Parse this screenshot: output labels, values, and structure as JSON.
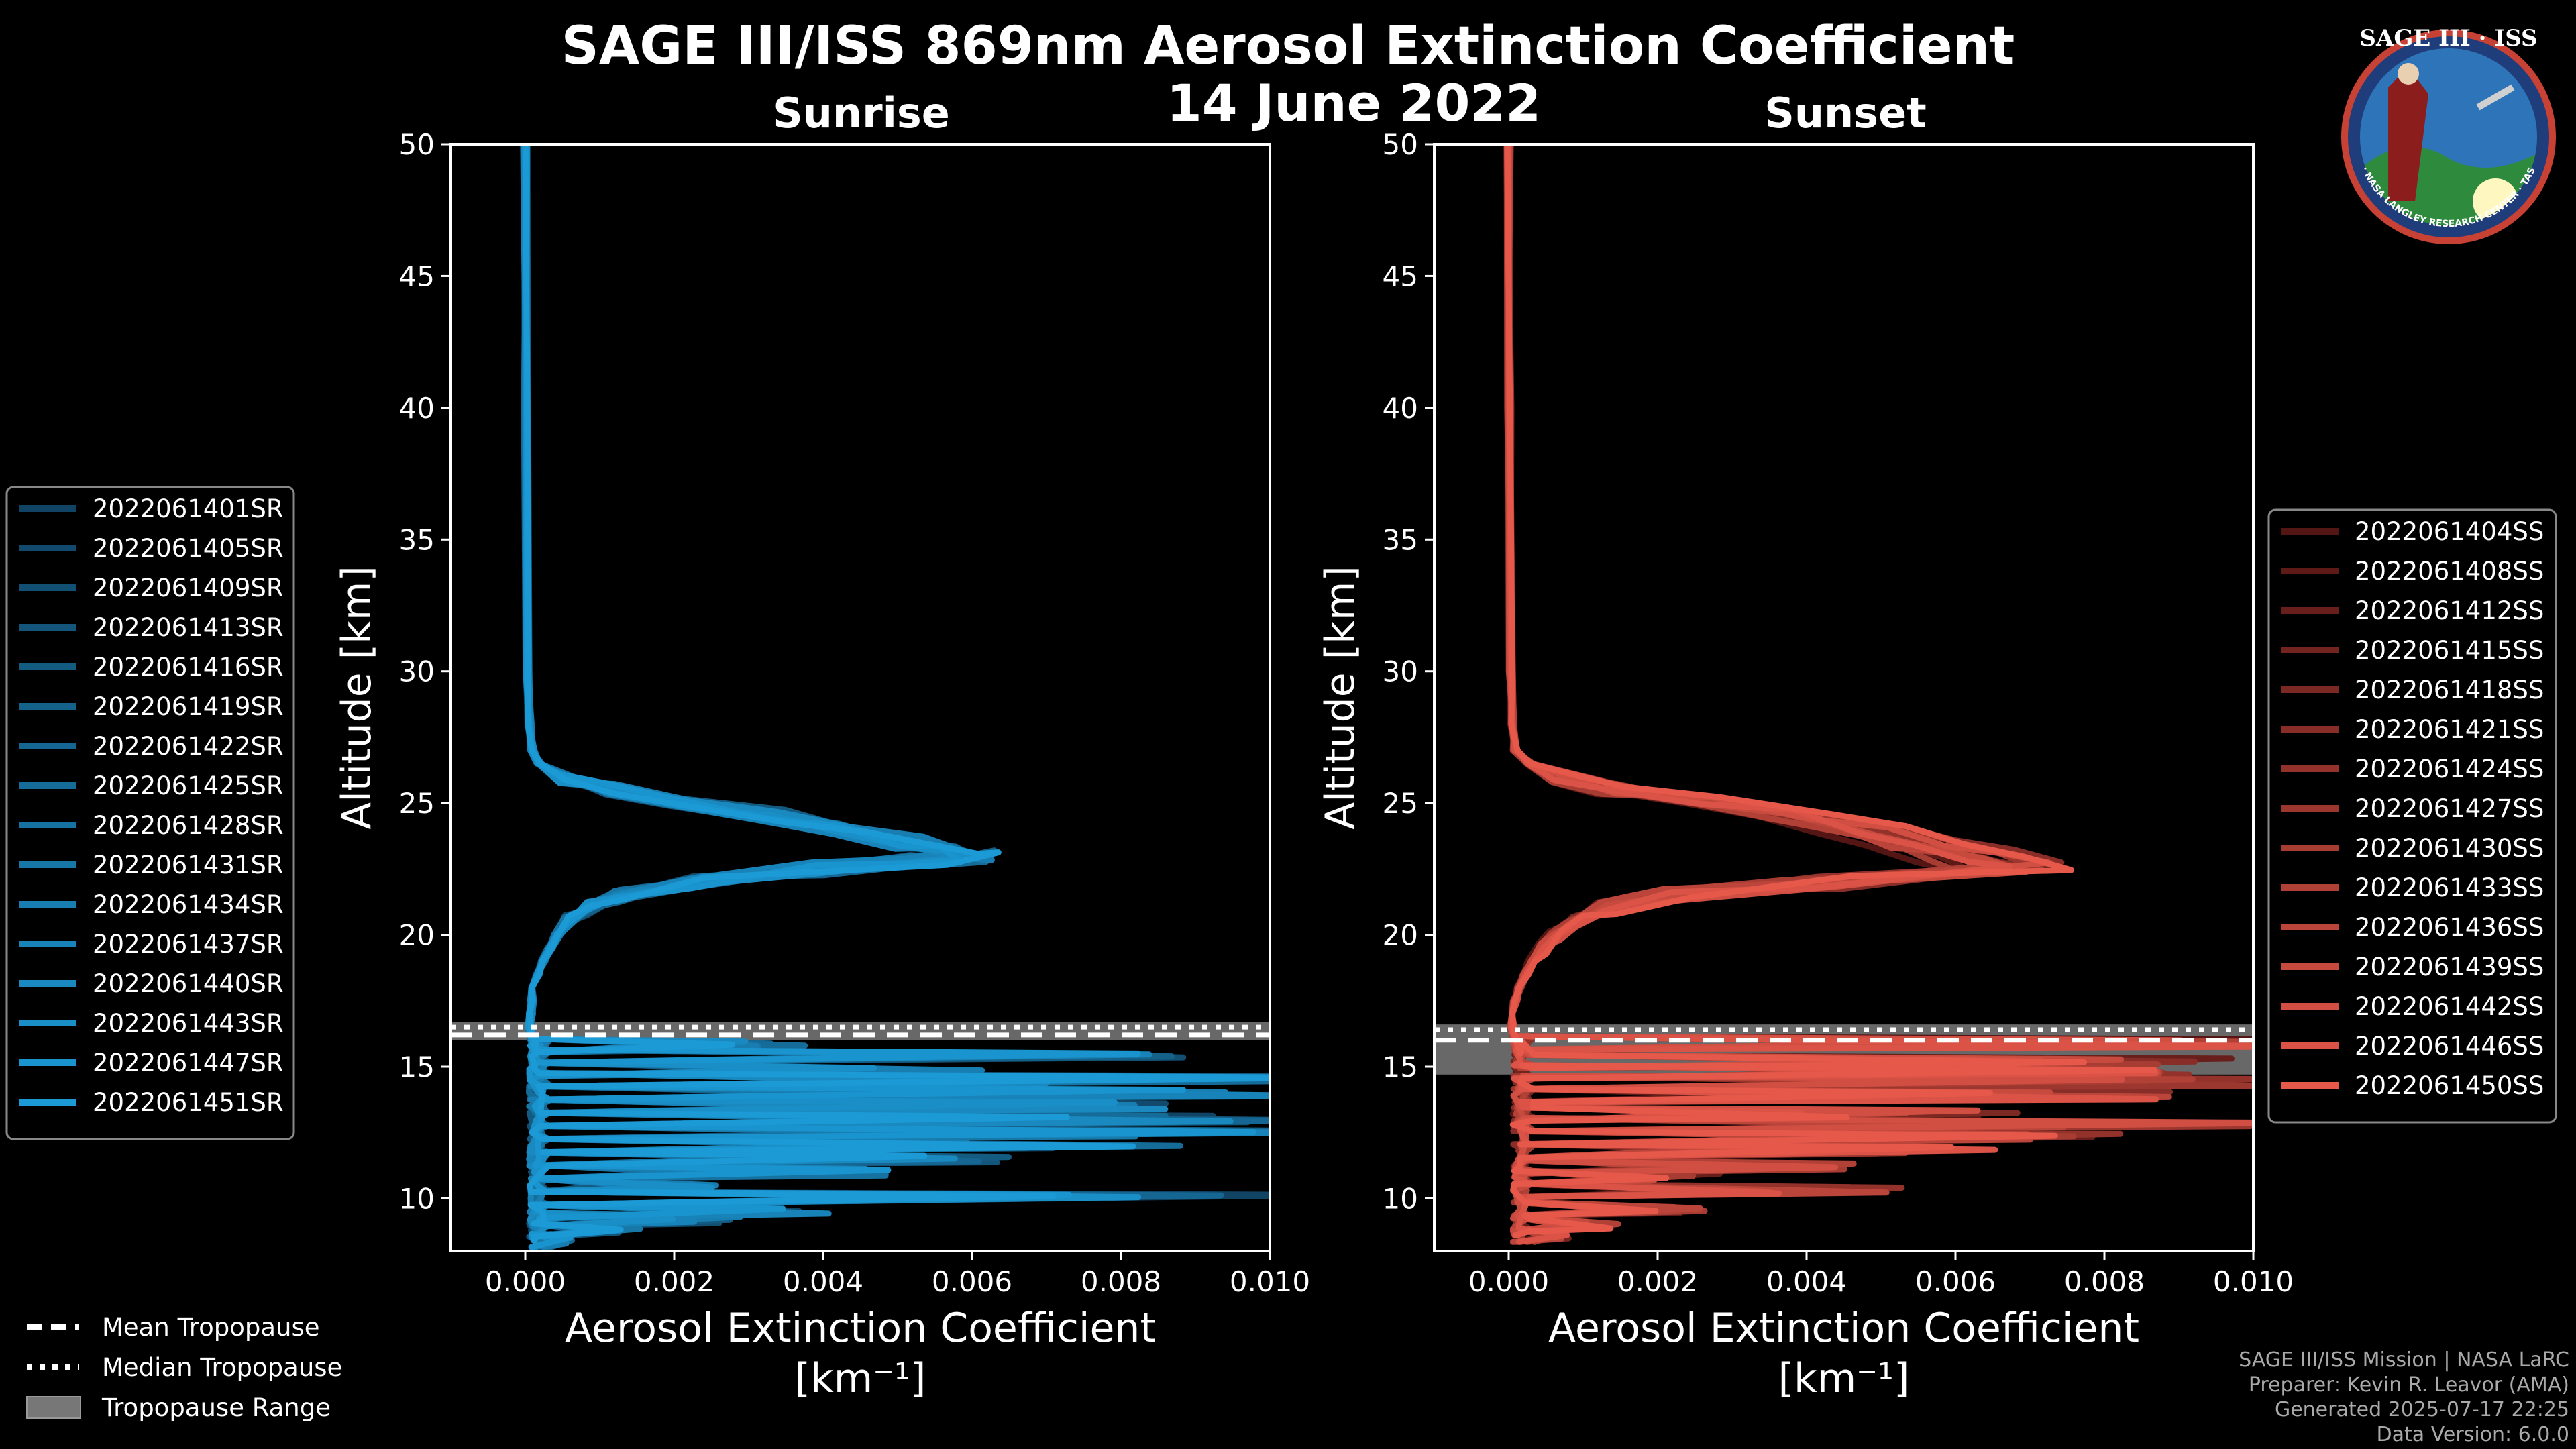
{
  "title_line1": "SAGE III/ISS 869nm Aerosol Extinction Coefficient",
  "title_line2": "14 June 2022",
  "logo": {
    "top_text": "SAGE III · ISS",
    "ring_text": "BALL · NASA LANGLEY RESEARCH CENTER · TAS · ESA"
  },
  "credits": [
    "SAGE III/ISS Mission | NASA LaRC",
    "Preparer: Kevin R. Leavor (AMA)",
    "Generated 2025-07-17 22:25",
    "Data Version: 6.0.0"
  ],
  "tropopause_legend": [
    {
      "label": "Mean Tropopause",
      "style": "dashed"
    },
    {
      "label": "Median Tropopause",
      "style": "dotted"
    },
    {
      "label": "Tropopause Range",
      "style": "band"
    }
  ],
  "chart_data": [
    {
      "type": "line",
      "panel": "sunrise",
      "title": "Sunrise",
      "xlabel": "Aerosol Extinction Coefficient",
      "xlabel_unit": "[km$^{-1}$]",
      "xlabel_unit_display": "[km⁻¹]",
      "ylabel": "Altitude [km]",
      "xlim": [
        -0.001,
        0.01
      ],
      "ylim": [
        8,
        50
      ],
      "xticks": [
        "0.000",
        "0.002",
        "0.004",
        "0.006",
        "0.008",
        "0.010"
      ],
      "xtick_values": [
        0,
        0.002,
        0.004,
        0.006,
        0.008,
        0.01
      ],
      "yticks": [
        10,
        15,
        20,
        25,
        30,
        35,
        40,
        45,
        50
      ],
      "color_light": "#1b9ad6",
      "color_dark": "#0f3550",
      "tropopause": {
        "mean": 16.2,
        "median": 16.5,
        "range": [
          16.0,
          16.7
        ]
      },
      "series_names": [
        "2022061401SR",
        "2022061405SR",
        "2022061409SR",
        "2022061413SR",
        "2022061416SR",
        "2022061419SR",
        "2022061422SR",
        "2022061425SR",
        "2022061428SR",
        "2022061431SR",
        "2022061434SR",
        "2022061437SR",
        "2022061440SR",
        "2022061443SR",
        "2022061447SR",
        "2022061451SR"
      ],
      "profile_template": {
        "altitude": [
          50,
          40,
          30,
          28,
          27,
          26.5,
          26,
          25.5,
          25,
          24.5,
          24,
          23.5,
          23.2,
          23,
          22.8,
          22.5,
          22,
          21.5,
          21,
          20.5,
          20,
          19.5,
          19,
          18.5,
          18,
          17.5,
          17,
          16.5,
          16,
          15.5
        ],
        "extinction": [
          0.0,
          1e-05,
          3e-05,
          6e-05,
          0.0001,
          0.0002,
          0.0005,
          0.0012,
          0.0022,
          0.0035,
          0.0045,
          0.0054,
          0.006,
          0.0063,
          0.0056,
          0.0042,
          0.0024,
          0.0013,
          0.00085,
          0.0006,
          0.00045,
          0.00035,
          0.00025,
          0.00018,
          0.00012,
          0.0001,
          8e-05,
          6e-05,
          0.0001,
          0.00015
        ]
      },
      "peak_scale": [
        0.92,
        0.95,
        0.97,
        0.9,
        1.0,
        0.93,
        0.96,
        0.98,
        0.91,
        0.94,
        0.99,
        0.92,
        0.97,
        0.95,
        0.93,
        1.01
      ],
      "lower_spikes": [
        {
          "altitude": 15.8,
          "extinction": 0.0035
        },
        {
          "altitude": 15.4,
          "extinction": 0.0085
        },
        {
          "altitude": 14.9,
          "extinction": 0.006
        },
        {
          "altitude": 14.5,
          "extinction": 0.01
        },
        {
          "altitude": 14.0,
          "extinction": 0.01
        },
        {
          "altitude": 13.5,
          "extinction": 0.008
        },
        {
          "altitude": 13.0,
          "extinction": 0.01
        },
        {
          "altitude": 12.5,
          "extinction": 0.01
        },
        {
          "altitude": 12.0,
          "extinction": 0.008
        },
        {
          "altitude": 11.5,
          "extinction": 0.006
        },
        {
          "altitude": 11.0,
          "extinction": 0.0045
        },
        {
          "altitude": 10.5,
          "extinction": 0.0025
        },
        {
          "altitude": 10.0,
          "extinction": 0.01
        },
        {
          "altitude": 9.5,
          "extinction": 0.004
        },
        {
          "altitude": 9.2,
          "extinction": 0.003
        },
        {
          "altitude": 8.8,
          "extinction": 0.0015
        },
        {
          "altitude": 8.4,
          "extinction": 0.0006
        }
      ]
    },
    {
      "type": "line",
      "panel": "sunset",
      "title": "Sunset",
      "xlabel": "Aerosol Extinction Coefficient",
      "xlabel_unit": "[km$^{-1}$]",
      "xlabel_unit_display": "[km⁻¹]",
      "ylabel": "Altitude [km]",
      "xlim": [
        -0.001,
        0.01
      ],
      "ylim": [
        8,
        50
      ],
      "xticks": [
        "0.000",
        "0.002",
        "0.004",
        "0.006",
        "0.008",
        "0.010"
      ],
      "xtick_values": [
        0,
        0.002,
        0.004,
        0.006,
        0.008,
        0.01
      ],
      "yticks": [
        10,
        15,
        20,
        25,
        30,
        35,
        40,
        45,
        50
      ],
      "color_light": "#e5584a",
      "color_dark": "#3a0a0a",
      "tropopause": {
        "mean": 16.0,
        "median": 16.4,
        "range": [
          14.7,
          16.6
        ]
      },
      "series_names": [
        "2022061404SS",
        "2022061408SS",
        "2022061412SS",
        "2022061415SS",
        "2022061418SS",
        "2022061421SS",
        "2022061424SS",
        "2022061427SS",
        "2022061430SS",
        "2022061433SS",
        "2022061436SS",
        "2022061439SS",
        "2022061442SS",
        "2022061446SS",
        "2022061450SS"
      ],
      "profile_template": {
        "altitude": [
          50,
          40,
          30,
          28,
          27,
          26.5,
          26,
          25.5,
          25,
          24.5,
          24,
          23.5,
          23,
          22.5,
          22,
          21.5,
          21,
          20.5,
          20,
          19.5,
          19,
          18.5,
          18,
          17.5,
          17,
          16.5,
          16,
          15.5
        ],
        "extinction": [
          0.0,
          1e-05,
          3e-05,
          6e-05,
          0.0001,
          0.0003,
          0.0007,
          0.0015,
          0.0028,
          0.0042,
          0.0052,
          0.006,
          0.0068,
          0.0074,
          0.0045,
          0.0024,
          0.0014,
          0.00095,
          0.0007,
          0.0005,
          0.00035,
          0.00025,
          0.00015,
          0.0001,
          6e-05,
          5e-05,
          0.0001,
          0.00015
        ]
      },
      "peak_scale": [
        0.8,
        0.85,
        0.9,
        0.95,
        0.88,
        1.0,
        0.92,
        0.97,
        0.83,
        0.9,
        0.86,
        0.94,
        0.98,
        0.91,
        1.02
      ],
      "lower_spikes": [
        {
          "altitude": 15.9,
          "extinction": 0.01
        },
        {
          "altitude": 15.2,
          "extinction": 0.01
        },
        {
          "altitude": 14.8,
          "extinction": 0.0085
        },
        {
          "altitude": 14.4,
          "extinction": 0.01
        },
        {
          "altitude": 13.9,
          "extinction": 0.0085
        },
        {
          "altitude": 13.2,
          "extinction": 0.0065
        },
        {
          "altitude": 12.8,
          "extinction": 0.01
        },
        {
          "altitude": 12.3,
          "extinction": 0.0085
        },
        {
          "altitude": 11.8,
          "extinction": 0.006
        },
        {
          "altitude": 11.2,
          "extinction": 0.0045
        },
        {
          "altitude": 10.8,
          "extinction": 0.003
        },
        {
          "altitude": 10.3,
          "extinction": 0.005
        },
        {
          "altitude": 9.6,
          "extinction": 0.0025
        },
        {
          "altitude": 9.0,
          "extinction": 0.0015
        },
        {
          "altitude": 8.6,
          "extinction": 0.0008
        }
      ]
    }
  ]
}
